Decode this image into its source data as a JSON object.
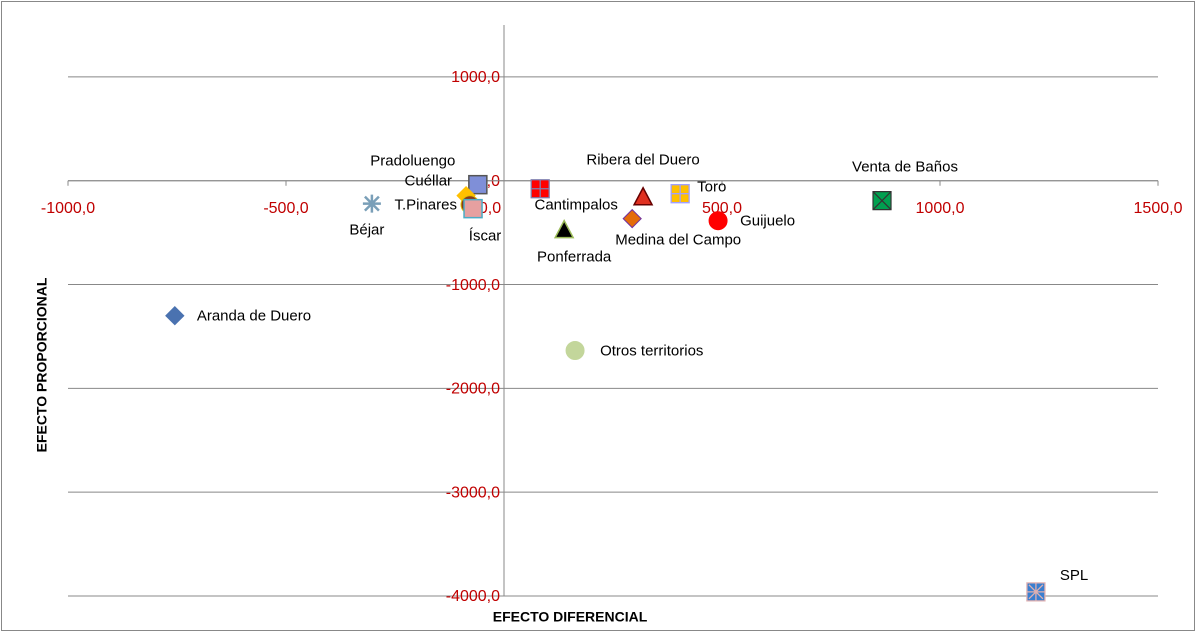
{
  "chart_data": {
    "type": "scatter",
    "x_label": "EFECTO  DIFERENCIAL",
    "y_label": "EFECTO PROPORCIONAL",
    "xlim": [
      -1000,
      1500
    ],
    "ylim": [
      -4000,
      1500
    ],
    "xticks": [
      {
        "value": -1000,
        "label": "-1000,0"
      },
      {
        "value": -500,
        "label": "-500,0"
      },
      {
        "value": 0,
        "label": "0,0"
      },
      {
        "value": 500,
        "label": "500,0"
      },
      {
        "value": 1000,
        "label": "1000,0"
      },
      {
        "value": 1500,
        "label": "1500,0"
      }
    ],
    "yticks": [
      {
        "value": -4000,
        "label": "-4000,0"
      },
      {
        "value": -3000,
        "label": "-3000,0"
      },
      {
        "value": -2000,
        "label": "-2000,0"
      },
      {
        "value": -1000,
        "label": "-1000,0"
      },
      {
        "value": 0,
        "label": "0,0"
      },
      {
        "value": 1000,
        "label": "1000,0"
      }
    ],
    "grid": true,
    "series": [
      {
        "name": "Aranda de Duero",
        "marker": "diamond",
        "color": "#4a72b0",
        "x": [
          -755
        ],
        "values": [
          -1300
        ]
      },
      {
        "name": "Otros territorios",
        "marker": "circle",
        "color": "#c3d69b",
        "x": [
          163
        ],
        "values": [
          -1635
        ]
      },
      {
        "name": "SPL",
        "marker": "square-star",
        "color": "#3a7fd0",
        "x": [
          1220
        ],
        "values": [
          -3960
        ]
      },
      {
        "name": "Venta de Baños",
        "marker": "square-x",
        "color": "#00a050",
        "x": [
          867
        ],
        "values": [
          -192
        ]
      },
      {
        "name": "Toro",
        "marker": "square-plus",
        "color": "#ffc000",
        "x": [
          404
        ],
        "values": [
          -125
        ]
      },
      {
        "name": "Guijuelo",
        "marker": "circle",
        "color": "#ff0000",
        "x": [
          491
        ],
        "values": [
          -385
        ]
      },
      {
        "name": "Ribera del Duero",
        "marker": "triangle",
        "color": "#e03020",
        "x": [
          319
        ],
        "values": [
          -154
        ]
      },
      {
        "name": "Medina del Campo",
        "marker": "diamond",
        "color": "#e46c0a",
        "x": [
          294
        ],
        "values": [
          -365
        ]
      },
      {
        "name": "Ponferrada",
        "marker": "triangle",
        "color": "#000000",
        "x": [
          138
        ],
        "values": [
          -471
        ]
      },
      {
        "name": "Cantimpalos",
        "marker": "square-plus",
        "color": "#ff0000",
        "x": [
          83
        ],
        "values": [
          -77
        ]
      },
      {
        "name": "Pradoluengo",
        "marker": "square",
        "color": "#7f8fd8",
        "x": [
          -60
        ],
        "values": [
          -38
        ]
      },
      {
        "name": "Cuéllar",
        "marker": "diamond",
        "color": "#ffc000",
        "x": [
          -87
        ],
        "values": [
          -144
        ]
      },
      {
        "name": "T.Pinares",
        "marker": "circle",
        "color": "#8b3a1a",
        "x": [
          -78
        ],
        "values": [
          -231
        ]
      },
      {
        "name": "Íscar",
        "marker": "square",
        "color": "#e6a0a0",
        "x": [
          -71
        ],
        "values": [
          -269
        ]
      },
      {
        "name": "Béjar",
        "marker": "star",
        "color": "#7a9fb8",
        "x": [
          -303
        ],
        "values": [
          -221
        ]
      }
    ]
  }
}
